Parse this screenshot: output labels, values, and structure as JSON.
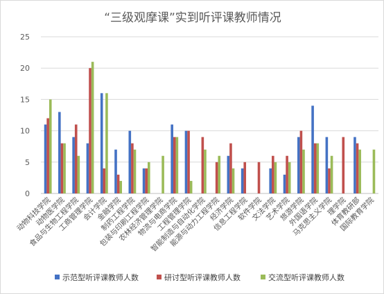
{
  "chart_data": {
    "type": "bar",
    "title": "“三级观摩课”实到听评课教师情况",
    "ylim": [
      0,
      25
    ],
    "yticks": [
      0,
      5,
      10,
      15,
      20,
      25
    ],
    "grid": true,
    "legend_position": "bottom",
    "categories": [
      "动物科技学院",
      "动物医学院",
      "食品与生物工程学院",
      "工商管理学院",
      "会计学院",
      "金融学院",
      "制药工程学院",
      "包装与印刷工程学院",
      "农林经济管理学院",
      "物流与电商学院",
      "工程管理学院",
      "智能制造与自动化学院",
      "能源与动力工程学院",
      "经济学院",
      "信息工程学院",
      "软件学院",
      "文法学院",
      "艺术学院",
      "旅游学院",
      "外国语学院",
      "马克思主义学院",
      "理学院",
      "体育教研部",
      "国际教育学院"
    ],
    "series": [
      {
        "name": "示范型听评课教师人数",
        "color": "#4472c4",
        "values": [
          11,
          13,
          9,
          8,
          16,
          7,
          10,
          4,
          0,
          11,
          10,
          0,
          0,
          6,
          4,
          0,
          4,
          3,
          9,
          14,
          9,
          0,
          9,
          0
        ]
      },
      {
        "name": "研讨型听评课教师人数",
        "color": "#c0504d",
        "values": [
          12,
          8,
          11,
          20,
          4,
          3,
          8,
          4,
          0,
          9,
          10,
          9,
          5,
          8,
          5,
          5,
          6,
          6,
          10,
          8,
          4,
          9,
          8,
          0
        ]
      },
      {
        "name": "交流型听评课教师人数",
        "color": "#9bbb59",
        "values": [
          15,
          8,
          6,
          21,
          16,
          2,
          7,
          5,
          6,
          9,
          2,
          7,
          6,
          4,
          0,
          0,
          5,
          5,
          7,
          8,
          6,
          0,
          7,
          7
        ]
      }
    ]
  }
}
